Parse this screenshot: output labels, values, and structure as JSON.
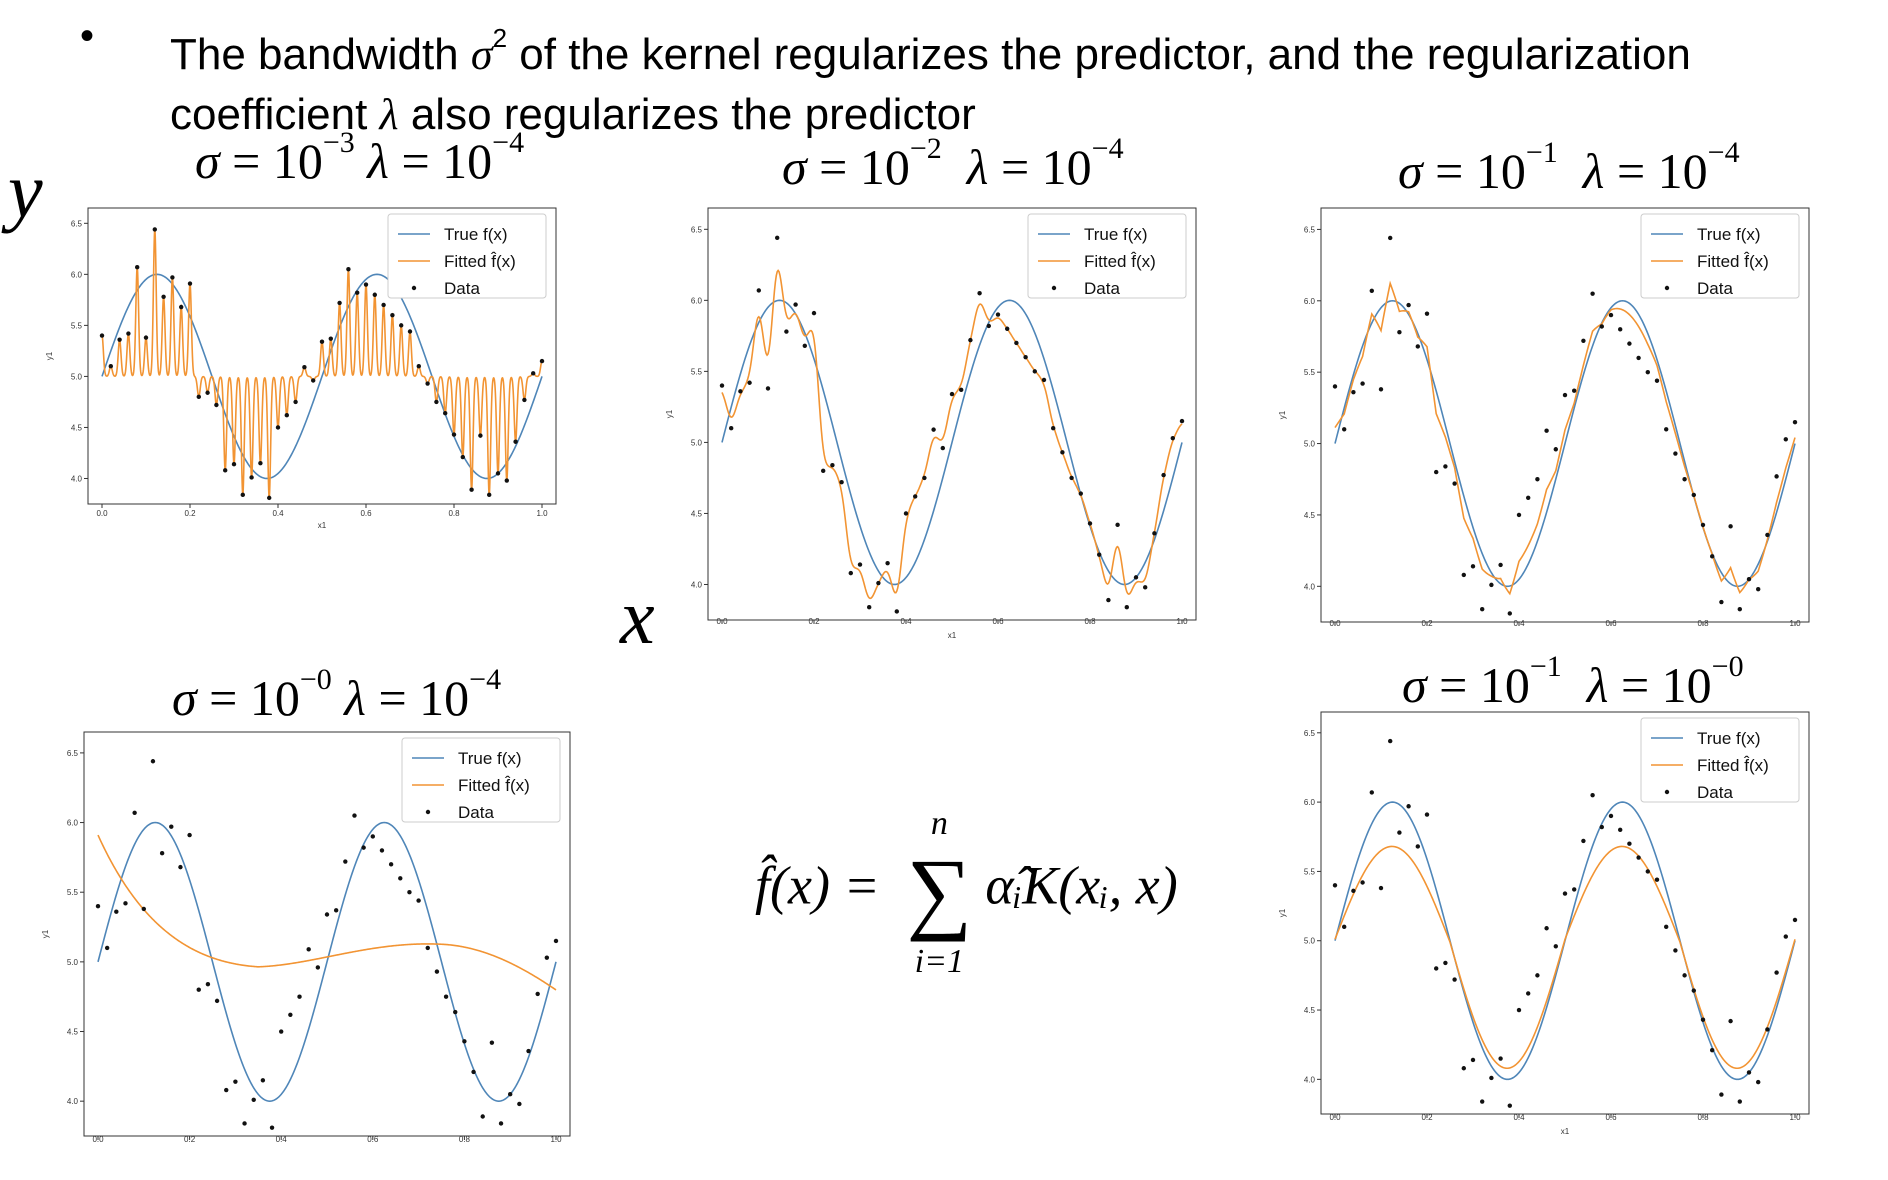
{
  "header": {
    "bullet": "•",
    "text_1": "The bandwidth ",
    "sigma": "σ",
    "sigma_exp": "2",
    "text_2": " of the kernel regularizes the predictor, and the regularization",
    "text_3": "coefficient ",
    "lambda": "λ",
    "text_4": " also regularizes the predictor"
  },
  "axis_labels": {
    "y": "y",
    "x": "x"
  },
  "formula": {
    "lhs": "f̂(x) = ",
    "sum_top": "n",
    "sum": "∑",
    "sum_bottom": "i=1",
    "rhs": "α̂ᵢK(xᵢ, x)"
  },
  "colors": {
    "true": "#4f86b8",
    "fitted": "#f29433",
    "data": "#111111"
  },
  "chart_data": [
    {
      "type": "line",
      "title": {
        "sigma_exp": "−3",
        "lambda_exp": "−4"
      },
      "xlabel": "x1",
      "ylabel": "y1",
      "xlim": [
        0,
        1
      ],
      "ylim": [
        3.75,
        6.65
      ],
      "xticks": [
        "0.0",
        "0.2",
        "0.4",
        "0.6",
        "0.8",
        "1.0"
      ],
      "yticks": [
        "4.0",
        "4.5",
        "5.0",
        "5.5",
        "6.0",
        "6.5"
      ],
      "legend": [
        "True f(x)",
        "Fitted f̂(x)",
        "Data"
      ],
      "legend_position": "upper right",
      "fit": "spikes"
    },
    {
      "type": "line",
      "title": {
        "sigma_exp": "−2",
        "lambda_exp": "−4"
      },
      "xlabel": "x1",
      "ylabel": "y1",
      "xlim": [
        0,
        1
      ],
      "ylim": [
        3.75,
        6.65
      ],
      "xticks": [
        "0.0",
        "0.2",
        "0.4",
        "0.6",
        "0.8",
        "1.0"
      ],
      "yticks": [
        "4.0",
        "4.5",
        "5.0",
        "5.5",
        "6.0",
        "6.5"
      ],
      "legend": [
        "True f(x)",
        "Fitted f̂(x)",
        "Data"
      ],
      "legend_position": "upper right",
      "fit": "wiggly"
    },
    {
      "type": "line",
      "title": {
        "sigma_exp": "−1",
        "lambda_exp": "−4"
      },
      "xlabel": "",
      "ylabel": "y1",
      "xlim": [
        0,
        1
      ],
      "ylim": [
        3.75,
        6.65
      ],
      "xticks": [
        "0.0",
        "0.2",
        "0.4",
        "0.6",
        "0.8",
        "1.0"
      ],
      "yticks": [
        "4.0",
        "4.5",
        "5.0",
        "5.5",
        "6.0",
        "6.5"
      ],
      "legend": [
        "True f(x)",
        "Fitted f̂(x)",
        "Data"
      ],
      "legend_position": "upper right",
      "fit": "good"
    },
    {
      "type": "line",
      "title": {
        "sigma_exp": "−0",
        "lambda_exp": "−4"
      },
      "xlabel": "",
      "ylabel": "y1",
      "xlim": [
        0,
        1
      ],
      "ylim": [
        3.75,
        6.65
      ],
      "xticks": [
        "0.0",
        "0.2",
        "0.4",
        "0.6",
        "0.8",
        "1.0"
      ],
      "yticks": [
        "4.0",
        "4.5",
        "5.0",
        "5.5",
        "6.0",
        "6.5"
      ],
      "legend": [
        "True f(x)",
        "Fitted f̂(x)",
        "Data"
      ],
      "legend_position": "upper right",
      "fit": "smooth"
    },
    {
      "type": "line",
      "title": {
        "sigma_exp": "−1",
        "lambda_exp": "−0"
      },
      "xlabel": "x1",
      "ylabel": "y1",
      "xlim": [
        0,
        1
      ],
      "ylim": [
        3.75,
        6.65
      ],
      "xticks": [
        "0.0",
        "0.2",
        "0.4",
        "0.6",
        "0.8",
        "1.0"
      ],
      "yticks": [
        "4.0",
        "4.5",
        "5.0",
        "5.5",
        "6.0",
        "6.5"
      ],
      "legend": [
        "True f(x)",
        "Fitted f̂(x)",
        "Data"
      ],
      "legend_position": "upper right",
      "fit": "damped"
    }
  ],
  "data_points": {
    "x": [
      0.0,
      0.02,
      0.04,
      0.06,
      0.08,
      0.1,
      0.12,
      0.14,
      0.16,
      0.18,
      0.2,
      0.22,
      0.24,
      0.26,
      0.28,
      0.3,
      0.32,
      0.34,
      0.36,
      0.38,
      0.4,
      0.42,
      0.44,
      0.46,
      0.48,
      0.5,
      0.52,
      0.54,
      0.56,
      0.58,
      0.6,
      0.62,
      0.64,
      0.66,
      0.68,
      0.7,
      0.72,
      0.74,
      0.76,
      0.78,
      0.8,
      0.82,
      0.84,
      0.86,
      0.88,
      0.9,
      0.92,
      0.94,
      0.96,
      0.98,
      1.0
    ],
    "y": [
      5.4,
      5.1,
      5.36,
      5.42,
      6.07,
      5.38,
      6.44,
      5.78,
      5.97,
      5.68,
      5.91,
      4.8,
      4.84,
      4.72,
      4.08,
      4.14,
      3.84,
      4.01,
      4.15,
      3.81,
      4.5,
      4.62,
      4.75,
      5.09,
      4.96,
      5.34,
      5.37,
      5.72,
      6.05,
      5.82,
      5.9,
      5.8,
      5.7,
      5.6,
      5.5,
      5.44,
      5.1,
      4.93,
      4.75,
      4.64,
      4.43,
      4.21,
      3.89,
      4.42,
      3.84,
      4.05,
      3.98,
      4.36,
      4.77,
      5.03,
      5.15
    ]
  }
}
